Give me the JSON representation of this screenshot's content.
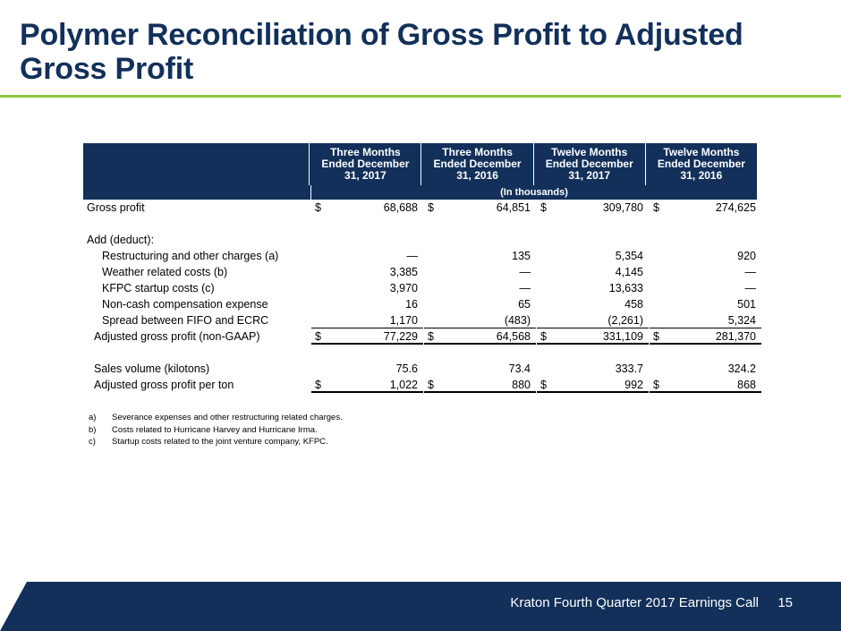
{
  "title": "Polymer Reconciliation of Gross Profit to Adjusted Gross Profit",
  "headers": [
    [
      "Three Months",
      "Ended December",
      "31, 2017"
    ],
    [
      "Three Months",
      "Ended December",
      "31, 2016"
    ],
    [
      "Twelve Months",
      "Ended December",
      "31, 2017"
    ],
    [
      "Twelve Months",
      "Ended December",
      "31, 2016"
    ]
  ],
  "units_label": "(In thousands)",
  "rows": [
    {
      "label": "Gross profit",
      "dollar": true,
      "values": [
        "68,688",
        "64,851",
        "309,780",
        "274,625"
      ]
    },
    {
      "label": "",
      "values": [
        "",
        "",
        "",
        ""
      ]
    },
    {
      "label": "Add (deduct):",
      "values": [
        "",
        "",
        "",
        ""
      ]
    },
    {
      "label": "Restructuring and other charges (a)",
      "values": [
        "—",
        "135",
        "5,354",
        "920"
      ]
    },
    {
      "label": "Weather related costs (b)",
      "values": [
        "3,385",
        "—",
        "4,145",
        "—"
      ]
    },
    {
      "label": "KFPC startup costs (c)",
      "values": [
        "3,970",
        "—",
        "13,633",
        "—"
      ]
    },
    {
      "label": "Non-cash compensation expense",
      "values": [
        "16",
        "65",
        "458",
        "501"
      ]
    },
    {
      "label": "Spread between FIFO and ECRC",
      "values": [
        "1,170",
        "(483)",
        "(2,261)",
        "5,324"
      ]
    },
    {
      "label": "Adjusted gross profit (non-GAAP)",
      "dollar": true,
      "values": [
        "77,229",
        "64,568",
        "331,109",
        "281,370"
      ]
    },
    {
      "label": "",
      "values": [
        "",
        "",
        "",
        ""
      ]
    },
    {
      "label": "Sales volume (kilotons)",
      "values": [
        "75.6",
        "73.4",
        "333.7",
        "324.2"
      ]
    },
    {
      "label": "Adjusted gross profit per ton",
      "dollar": true,
      "values": [
        "1,022",
        "880",
        "992",
        "868"
      ]
    }
  ],
  "currency_symbol": "$",
  "notes": [
    {
      "key": "a)",
      "text": "Severance expenses and other restructuring related charges."
    },
    {
      "key": "b)",
      "text": "Costs related to Hurricane Harvey and Hurricane Irma."
    },
    {
      "key": "c)",
      "text": "Startup costs related to the joint venture company, KFPC."
    }
  ],
  "footer": {
    "text": "Kraton Fourth Quarter 2017 Earnings Call",
    "page": "15"
  },
  "colors": {
    "navy": "#12305a",
    "green": "#8dc63f"
  }
}
